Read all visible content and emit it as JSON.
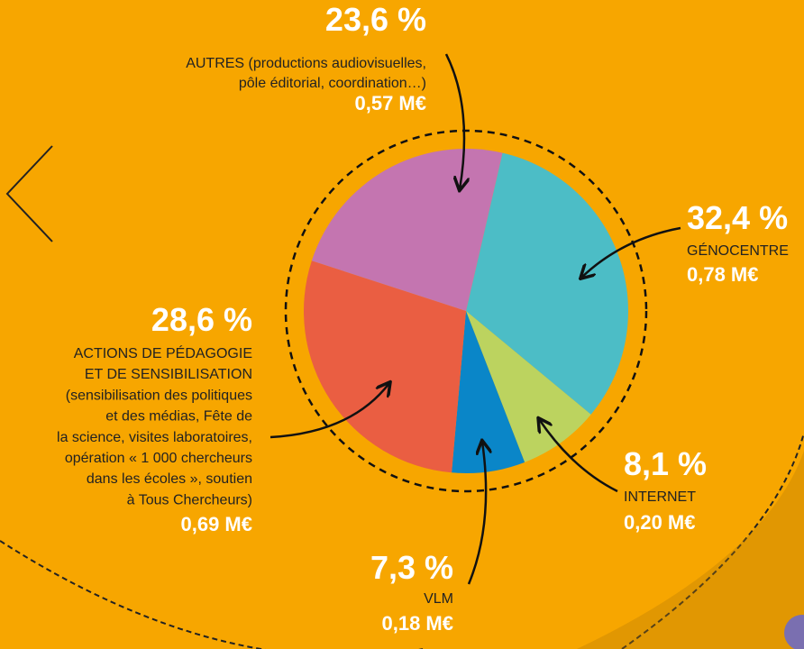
{
  "chart_data": {
    "type": "pie",
    "label_lines": [
      [
        "GÉNOCENTRE"
      ],
      [
        "INTERNET"
      ],
      [
        "VLM"
      ],
      [
        "ACTIONS DE PÉDAGOGIE",
        "ET DE SENSIBILISATION",
        "(sensibilisation des politiques",
        "et des médias, Fête de",
        "la science, visites laboratoires,",
        "opération « 1 000 chercheurs",
        "dans les écoles », soutien",
        "à Tous Chercheurs)"
      ],
      [
        "AUTRES (productions audiovisuelles,",
        "pôle éditorial, coordination…)"
      ]
    ],
    "values": [
      32.4,
      8.1,
      7.3,
      28.6,
      23.6
    ],
    "value_labels": [
      "32,4 %",
      "8,1 %",
      "7,3 %",
      "28,6 %",
      "23,6 %"
    ],
    "amount_labels": [
      "0,78 M€",
      "0,20 M€",
      "0,18 M€",
      "0,69 M€",
      "0,57 M€"
    ],
    "colors": [
      "#4cbdc6",
      "#bcd35f",
      "#0a86c8",
      "#ea5e42",
      "#c475b0"
    ]
  }
}
